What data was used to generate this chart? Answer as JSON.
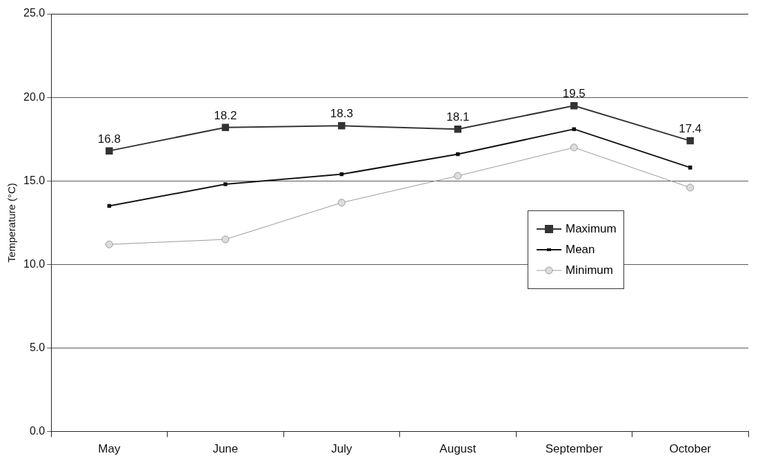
{
  "chart_data": {
    "type": "line",
    "ylabel": "Temperature (°C)",
    "categories": [
      "May",
      "June",
      "July",
      "August",
      "September",
      "October"
    ],
    "series": [
      {
        "name": "Maximum",
        "color": "#333333",
        "marker": "square",
        "values": [
          16.8,
          18.2,
          18.3,
          18.1,
          19.5,
          17.4
        ],
        "value_labels": [
          "16.8",
          "18.2",
          "18.3",
          "18.1",
          "19.5",
          "17.4"
        ]
      },
      {
        "name": "Mean",
        "color": "#111111",
        "marker": "square",
        "values": [
          13.5,
          14.8,
          15.4,
          16.6,
          18.1,
          15.8
        ]
      },
      {
        "name": "Minimum",
        "color": "#999999",
        "marker": "circle",
        "values": [
          11.2,
          11.5,
          13.7,
          15.3,
          17.0,
          14.6
        ]
      }
    ],
    "ylim": [
      0,
      25
    ],
    "yticks": [
      {
        "value": 0,
        "label": "0.0"
      },
      {
        "value": 5,
        "label": "5.0"
      },
      {
        "value": 10,
        "label": "10.0"
      },
      {
        "value": 15,
        "label": "15.0"
      },
      {
        "value": 20,
        "label": "20.0"
      },
      {
        "value": 25,
        "label": "25.0"
      }
    ],
    "grid": "y",
    "legend": "right",
    "line_style": "solid"
  }
}
